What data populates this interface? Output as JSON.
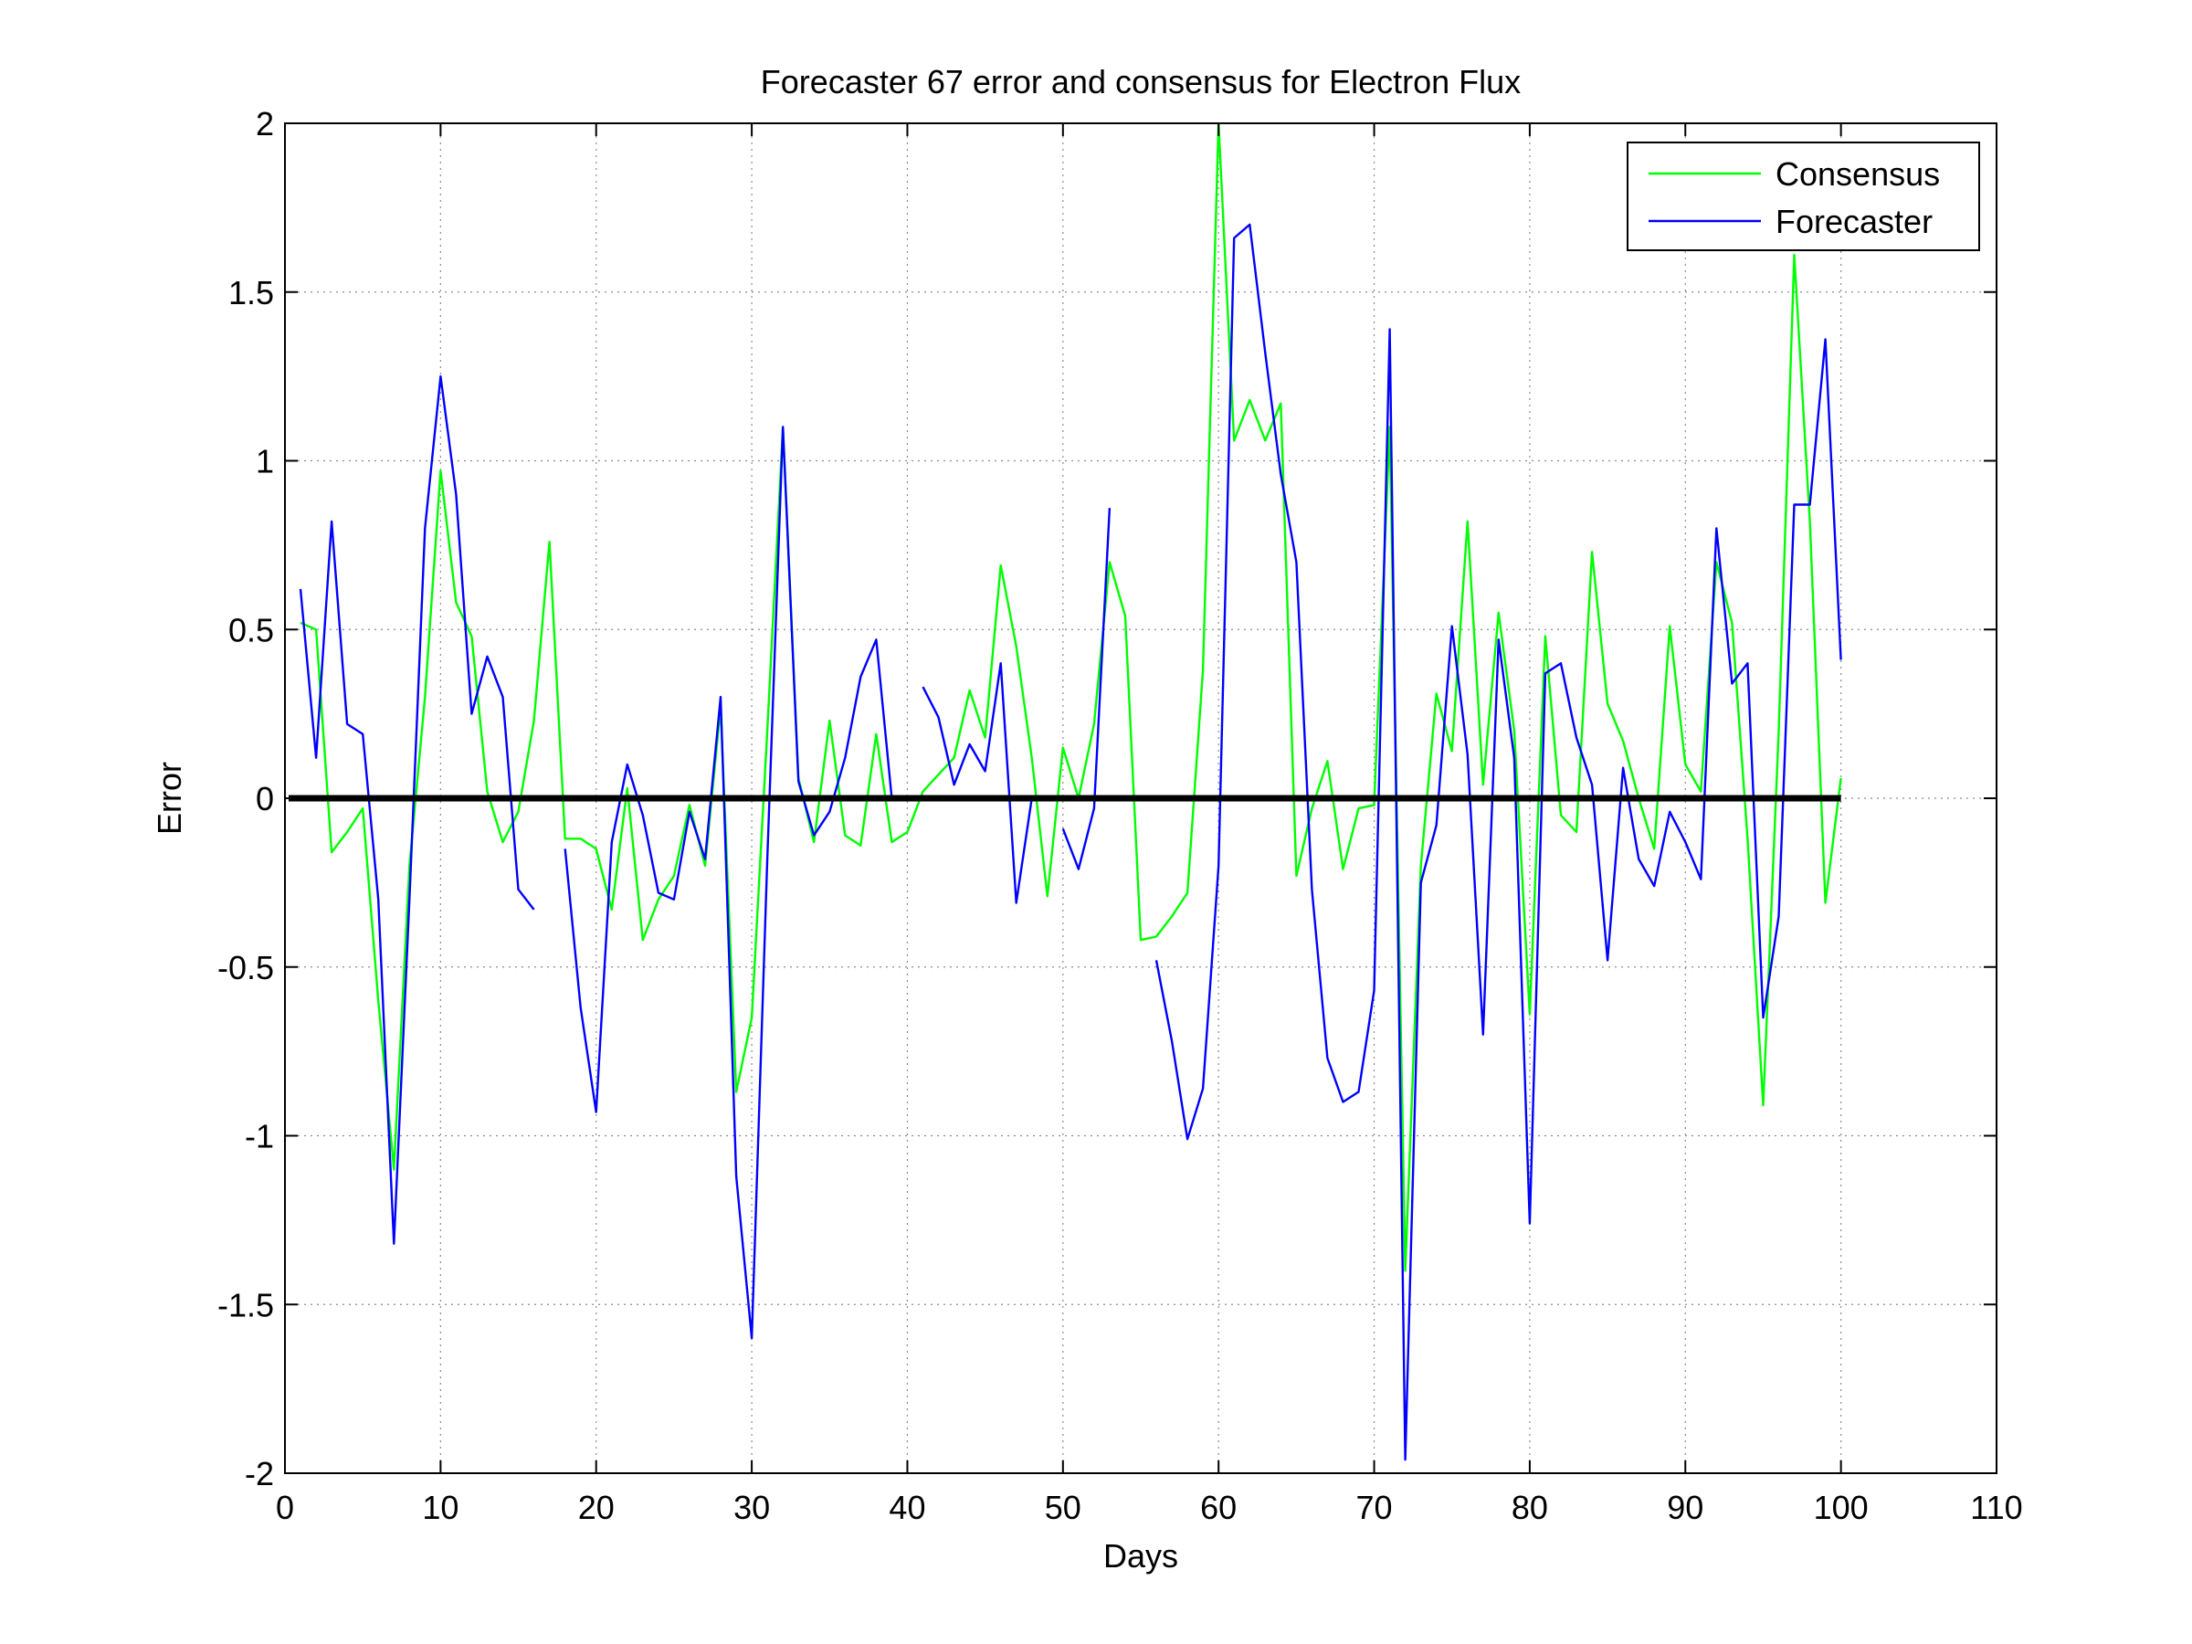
{
  "chart_data": {
    "type": "line",
    "title": "Forecaster 67 error and consensus for Electron Flux",
    "xlabel": "Days",
    "ylabel": "Error",
    "xlim": [
      0,
      110
    ],
    "ylim": [
      -2,
      2
    ],
    "xticks": [
      0,
      10,
      20,
      30,
      40,
      50,
      60,
      70,
      80,
      90,
      100,
      110
    ],
    "yticks": [
      -2,
      -1.5,
      -1,
      -0.5,
      0,
      0.5,
      1,
      1.5,
      2
    ],
    "xtick_labels": [
      "0",
      "10",
      "20",
      "30",
      "40",
      "50",
      "60",
      "70",
      "80",
      "90",
      "100",
      "110"
    ],
    "ytick_labels": [
      "-2",
      "-1.5",
      "-1",
      "-0.5",
      "0",
      "0.5",
      "1",
      "1.5",
      "2"
    ],
    "grid": true,
    "legend_position": "top-right",
    "reference_line": {
      "y": 0,
      "color": "#000000"
    },
    "series": [
      {
        "name": "Consensus",
        "color": "#00ff00",
        "x": [
          1,
          2,
          3,
          4,
          5,
          6,
          7,
          8,
          9,
          10,
          11,
          12,
          13,
          14,
          15,
          16,
          17,
          18,
          19,
          20,
          21,
          22,
          23,
          24,
          25,
          26,
          27,
          28,
          29,
          30,
          31,
          32,
          33,
          34,
          35,
          36,
          37,
          38,
          39,
          40,
          41,
          42,
          43,
          44,
          45,
          46,
          47,
          48,
          49,
          50,
          51,
          52,
          53,
          54,
          55,
          56,
          57,
          58,
          59,
          60,
          61,
          62,
          63,
          64,
          65,
          66,
          67,
          68,
          69,
          70,
          71,
          72,
          73,
          74,
          75,
          76,
          77,
          78,
          79,
          80,
          81,
          82,
          83,
          84,
          85,
          86,
          87,
          88,
          89,
          90,
          91,
          92,
          93,
          94,
          95,
          96,
          97,
          98,
          99,
          100
        ],
        "values": [
          0.52,
          0.5,
          -0.16,
          -0.1,
          -0.03,
          -0.6,
          -1.1,
          -0.2,
          0.3,
          0.97,
          0.58,
          0.48,
          0.02,
          -0.13,
          -0.04,
          0.23,
          0.76,
          -0.12,
          -0.12,
          -0.15,
          -0.33,
          0.03,
          -0.42,
          -0.3,
          -0.23,
          -0.02,
          -0.2,
          0.27,
          -0.87,
          -0.65,
          0.2,
          1.1,
          0.06,
          -0.13,
          0.23,
          -0.11,
          -0.14,
          0.19,
          -0.13,
          -0.1,
          0.02,
          0.07,
          0.12,
          0.32,
          0.18,
          0.69,
          0.45,
          0.12,
          -0.29,
          0.15,
          0.0,
          0.22,
          0.7,
          0.54,
          -0.42,
          -0.41,
          -0.35,
          -0.28,
          0.38,
          2.0,
          1.06,
          1.18,
          1.06,
          1.17,
          -0.23,
          -0.03,
          0.11,
          -0.21,
          -0.03,
          -0.02,
          1.1,
          -1.4,
          -0.2,
          0.31,
          0.14,
          0.82,
          0.04,
          0.55,
          0.2,
          -0.64,
          0.48,
          -0.05,
          -0.1,
          0.73,
          0.28,
          0.17,
          0.0,
          -0.15,
          0.51,
          0.1,
          0.02,
          0.7,
          0.52,
          -0.12,
          -0.91,
          0.2,
          1.61,
          0.82,
          -0.31,
          0.06
        ]
      },
      {
        "name": "Forecaster",
        "color": "#0000ff",
        "x": [
          1,
          2,
          3,
          4,
          5,
          6,
          7,
          8,
          9,
          10,
          11,
          12,
          13,
          14,
          15,
          16,
          17,
          18,
          19,
          20,
          21,
          22,
          23,
          24,
          25,
          26,
          27,
          28,
          29,
          30,
          31,
          32,
          33,
          34,
          35,
          36,
          37,
          38,
          39,
          40,
          41,
          42,
          43,
          44,
          45,
          46,
          47,
          48,
          49,
          50,
          51,
          52,
          53,
          54,
          55,
          56,
          57,
          58,
          59,
          60,
          61,
          62,
          63,
          64,
          65,
          66,
          67,
          68,
          69,
          70,
          71,
          72,
          73,
          74,
          75,
          76,
          77,
          78,
          79,
          80,
          81,
          82,
          83,
          84,
          85,
          86,
          87,
          88,
          89,
          90,
          91,
          92,
          93,
          94,
          95,
          96,
          97,
          98,
          99,
          100
        ],
        "values": [
          0.62,
          0.12,
          0.82,
          0.22,
          0.19,
          -0.3,
          -1.32,
          -0.3,
          0.8,
          1.25,
          0.9,
          0.25,
          0.42,
          0.3,
          -0.27,
          -0.33,
          null,
          -0.15,
          -0.62,
          -0.93,
          -0.13,
          0.1,
          -0.05,
          -0.28,
          -0.3,
          -0.04,
          -0.18,
          0.3,
          -1.12,
          -1.6,
          -0.18,
          1.1,
          0.05,
          -0.11,
          -0.04,
          0.12,
          0.36,
          0.47,
          0.0,
          null,
          0.33,
          0.24,
          0.04,
          0.16,
          0.08,
          0.4,
          -0.31,
          0.0,
          null,
          -0.09,
          -0.21,
          -0.03,
          0.86,
          null,
          null,
          -0.48,
          -0.72,
          -1.01,
          -0.86,
          -0.2,
          1.66,
          1.7,
          1.32,
          0.96,
          0.7,
          -0.27,
          -0.77,
          -0.9,
          -0.87,
          -0.57,
          1.39,
          -1.96,
          -0.25,
          -0.08,
          0.51,
          0.13,
          -0.7,
          0.47,
          0.12,
          -1.26,
          0.37,
          0.4,
          0.18,
          0.04,
          -0.48,
          0.09,
          -0.18,
          -0.26,
          -0.04,
          -0.13,
          -0.24,
          0.8,
          0.34,
          0.4,
          -0.65,
          -0.35,
          0.87,
          0.87,
          1.36,
          0.41
        ]
      }
    ]
  }
}
